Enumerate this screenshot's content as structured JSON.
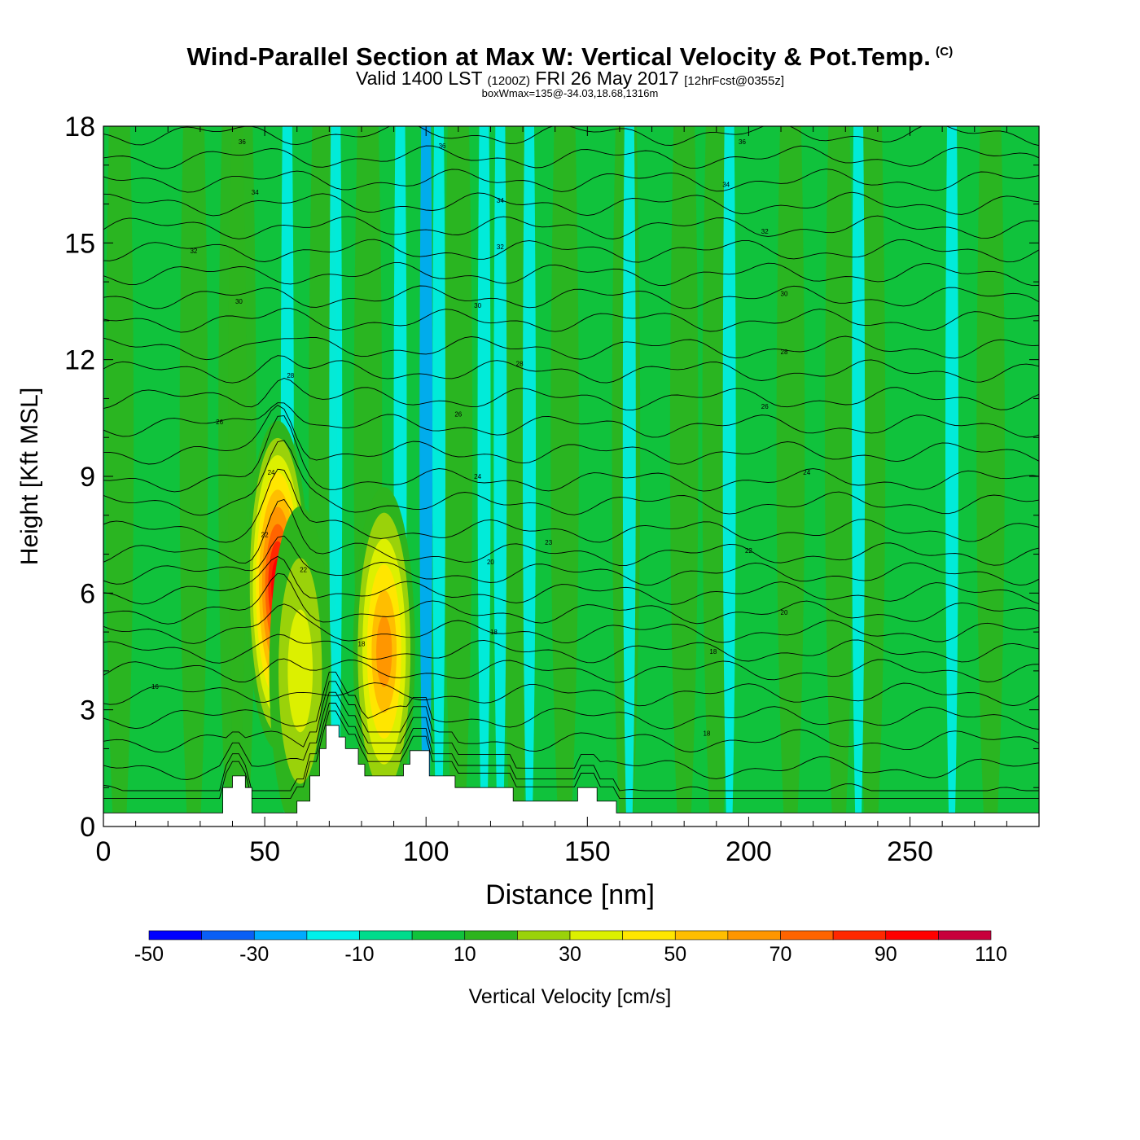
{
  "header": {
    "title": "Wind-Parallel Section at Max W: Vertical Velocity & Pot.Temp.",
    "copyright": "(C)",
    "valid_prefix": "Valid 1400 LST",
    "valid_utc": "(1200Z)",
    "valid_date": "FRI 26 May 2017",
    "forecast": "[12hrFcst@0355z]",
    "box_wmax": "boxWmax=135@-34.03,18.68,1316m"
  },
  "chart_data": {
    "type": "heatmap",
    "title": "Wind-Parallel Section at Max W: Vertical Velocity & Pot.Temp.",
    "xlabel": "Distance [nm]",
    "ylabel": "Height [Kft MSL]",
    "xlim": [
      0,
      290
    ],
    "ylim": [
      0,
      18
    ],
    "xticks": [
      0,
      50,
      100,
      150,
      200,
      250
    ],
    "yticks": [
      0,
      3,
      6,
      9,
      12,
      15,
      18
    ],
    "colorbar": {
      "label": "Vertical Velocity [cm/s]",
      "tick_labels": [
        "-50",
        "-30",
        "-10",
        "10",
        "30",
        "50",
        "70",
        "90",
        "110"
      ],
      "bounds": [
        -50,
        -40,
        -30,
        -20,
        -10,
        0,
        10,
        20,
        30,
        40,
        50,
        60,
        70,
        80,
        90,
        100,
        110
      ],
      "colors": [
        "#0000ff",
        "#0a5ff5",
        "#00aaff",
        "#00f0ea",
        "#00dc8c",
        "#10c23c",
        "#2db41e",
        "#9ad20a",
        "#dcf000",
        "#ffe600",
        "#ffbe00",
        "#ff9600",
        "#ff6400",
        "#ff2800",
        "#ff0000",
        "#c8003c"
      ]
    },
    "background_w": 5,
    "updrafts": [
      {
        "x": 54,
        "z": 6.2,
        "value": 100
      },
      {
        "x": 87,
        "z": 4.5,
        "value": 70
      },
      {
        "x": 61,
        "z": 4.0,
        "value": 35
      }
    ],
    "vertical_bands": [
      {
        "x": 5,
        "value": 12
      },
      {
        "x": 28,
        "value": 12
      },
      {
        "x": 40,
        "value": 12
      },
      {
        "x": 43,
        "value": 12
      },
      {
        "x": 68,
        "value": 12
      },
      {
        "x": 82,
        "value": 12
      },
      {
        "x": 110,
        "value": 12
      },
      {
        "x": 128,
        "value": 12
      },
      {
        "x": 143,
        "value": 12
      },
      {
        "x": 162,
        "value": 12
      },
      {
        "x": 180,
        "value": 12
      },
      {
        "x": 190,
        "value": 12
      },
      {
        "x": 213,
        "value": 12
      },
      {
        "x": 228,
        "value": 12
      },
      {
        "x": 238,
        "value": 12
      },
      {
        "x": 275,
        "value": 12
      },
      {
        "x": 57,
        "value": -15
      },
      {
        "x": 72,
        "value": -15
      },
      {
        "x": 92,
        "value": -15
      },
      {
        "x": 100,
        "value": -25
      },
      {
        "x": 104,
        "value": -15
      },
      {
        "x": 118,
        "value": -15
      },
      {
        "x": 123,
        "value": -15
      },
      {
        "x": 132,
        "value": -15
      },
      {
        "x": 163,
        "value": -15
      },
      {
        "x": 194,
        "value": -15
      },
      {
        "x": 234,
        "value": -15
      },
      {
        "x": 263,
        "value": -15
      }
    ],
    "terrain_kft": [
      [
        0,
        0.35
      ],
      [
        37,
        0.35
      ],
      [
        37,
        1.0
      ],
      [
        40,
        1.0
      ],
      [
        40,
        1.3
      ],
      [
        44,
        1.3
      ],
      [
        44,
        1.0
      ],
      [
        46,
        1.0
      ],
      [
        46,
        0.35
      ],
      [
        60,
        0.35
      ],
      [
        60,
        0.65
      ],
      [
        64,
        0.65
      ],
      [
        64,
        1.3
      ],
      [
        67,
        1.3
      ],
      [
        67,
        2.0
      ],
      [
        69,
        2.0
      ],
      [
        69,
        2.6
      ],
      [
        73,
        2.6
      ],
      [
        73,
        2.3
      ],
      [
        75,
        2.3
      ],
      [
        75,
        2.0
      ],
      [
        79,
        2.0
      ],
      [
        79,
        1.6
      ],
      [
        81,
        1.6
      ],
      [
        81,
        1.3
      ],
      [
        93,
        1.3
      ],
      [
        93,
        1.6
      ],
      [
        95,
        1.6
      ],
      [
        95,
        1.95
      ],
      [
        101,
        1.95
      ],
      [
        101,
        1.3
      ],
      [
        109,
        1.3
      ],
      [
        109,
        1.0
      ],
      [
        127,
        1.0
      ],
      [
        127,
        0.65
      ],
      [
        147,
        0.65
      ],
      [
        147,
        1.0
      ],
      [
        153,
        1.0
      ],
      [
        153,
        0.65
      ],
      [
        159,
        0.65
      ],
      [
        159,
        0.35
      ],
      [
        290,
        0.35
      ]
    ],
    "theta_contours": {
      "base_z_kft": [
        0.3,
        0.8,
        1.5,
        2.2,
        2.8,
        3.4,
        4.0,
        4.5,
        5.0,
        5.5,
        6.0,
        6.5,
        7.0,
        7.6,
        8.3,
        8.9,
        9.6,
        10.3,
        11.0,
        11.7,
        12.3,
        13.0,
        13.6,
        14.2,
        14.8,
        15.4,
        16.0,
        16.6,
        17.2,
        17.8
      ],
      "labels": [
        {
          "x": 16,
          "z": 3.6,
          "text": "16"
        },
        {
          "x": 80,
          "z": 4.7,
          "text": "18"
        },
        {
          "x": 121,
          "z": 5.0,
          "text": "18"
        },
        {
          "x": 189,
          "z": 4.5,
          "text": "18"
        },
        {
          "x": 187,
          "z": 2.4,
          "text": "18"
        },
        {
          "x": 211,
          "z": 5.5,
          "text": "20"
        },
        {
          "x": 120,
          "z": 6.8,
          "text": "20"
        },
        {
          "x": 62,
          "z": 6.6,
          "text": "22"
        },
        {
          "x": 200,
          "z": 7.1,
          "text": "22"
        },
        {
          "x": 50,
          "z": 7.5,
          "text": "22"
        },
        {
          "x": 138,
          "z": 7.3,
          "text": "23"
        },
        {
          "x": 52,
          "z": 9.1,
          "text": "24"
        },
        {
          "x": 116,
          "z": 9.0,
          "text": "24"
        },
        {
          "x": 218,
          "z": 9.1,
          "text": "24"
        },
        {
          "x": 36,
          "z": 10.4,
          "text": "26"
        },
        {
          "x": 110,
          "z": 10.6,
          "text": "26"
        },
        {
          "x": 205,
          "z": 10.8,
          "text": "26"
        },
        {
          "x": 58,
          "z": 11.6,
          "text": "28"
        },
        {
          "x": 129,
          "z": 11.9,
          "text": "28"
        },
        {
          "x": 211,
          "z": 12.2,
          "text": "28"
        },
        {
          "x": 42,
          "z": 13.5,
          "text": "30"
        },
        {
          "x": 116,
          "z": 13.4,
          "text": "30"
        },
        {
          "x": 211,
          "z": 13.7,
          "text": "30"
        },
        {
          "x": 28,
          "z": 14.8,
          "text": "32"
        },
        {
          "x": 123,
          "z": 14.9,
          "text": "32"
        },
        {
          "x": 205,
          "z": 15.3,
          "text": "32"
        },
        {
          "x": 47,
          "z": 16.3,
          "text": "34"
        },
        {
          "x": 123,
          "z": 16.1,
          "text": "34"
        },
        {
          "x": 193,
          "z": 16.5,
          "text": "34"
        },
        {
          "x": 43,
          "z": 17.6,
          "text": "36"
        },
        {
          "x": 105,
          "z": 17.5,
          "text": "36"
        },
        {
          "x": 198,
          "z": 17.6,
          "text": "36"
        }
      ]
    }
  }
}
